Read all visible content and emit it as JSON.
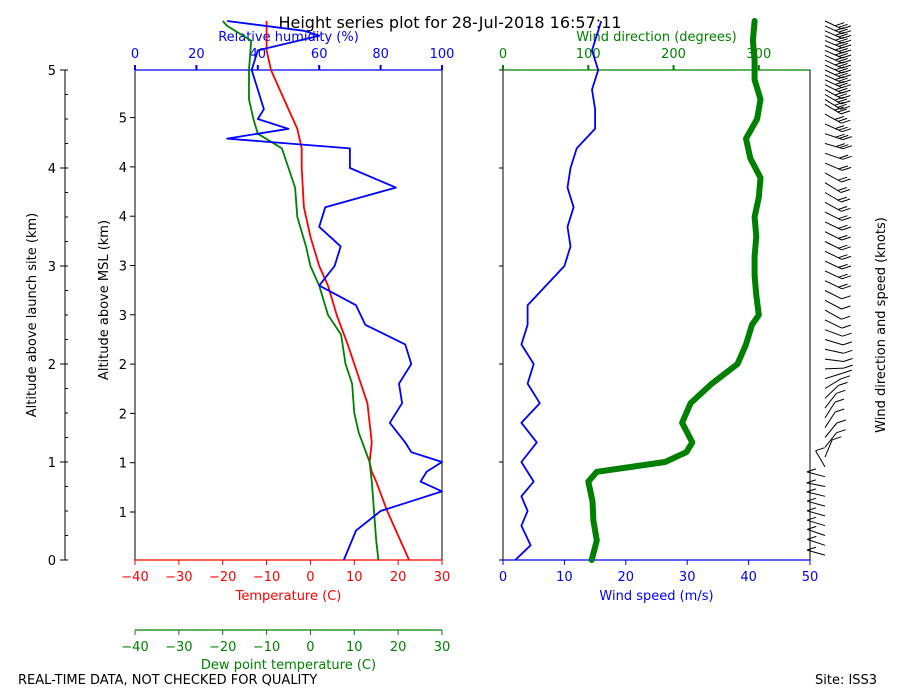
{
  "title": "Height series plot for 28-Jul-2018 16:57:11",
  "footer": {
    "left": "REAL-TIME DATA, NOT CHECKED FOR QUALITY",
    "right": "Site: ISS3"
  },
  "colors": {
    "temp": "#ff0000",
    "dewpoint": "#008000",
    "rh": "#0000ff",
    "wspd": "#0000ff",
    "wdir": "#008000",
    "axis": "#000000"
  },
  "chart_data": [
    {
      "type": "line",
      "name": "thermo",
      "title": "Height series plot for 28-Jul-2018 16:57:11",
      "y_left": {
        "label": "Altitude above launch site (km)",
        "range": [
          0,
          5
        ],
        "ticks": [
          0,
          1,
          2,
          3,
          4,
          5
        ]
      },
      "y_inner": {
        "label": "Altitude above MSL (km)",
        "labeled_ticks": [
          1,
          1,
          2,
          2,
          3,
          3,
          4,
          4,
          5
        ]
      },
      "x_bottom": {
        "label": "Temperature (C)",
        "range": [
          -40,
          30
        ],
        "ticks": [
          -40,
          -30,
          -20,
          -10,
          0,
          10,
          20,
          30
        ]
      },
      "x_bottom2": {
        "label": "Dew point temperature (C)",
        "range": [
          -40,
          30
        ],
        "ticks": [
          -40,
          -30,
          -20,
          -10,
          0,
          10,
          20,
          30
        ]
      },
      "x_top": {
        "label": "Relative humidity (%)",
        "range": [
          0,
          100
        ],
        "ticks": [
          0,
          20,
          40,
          60,
          80,
          100
        ]
      },
      "series": [
        {
          "name": "Temperature",
          "axis": "temp",
          "color": "#ff0000",
          "y": [
            0.0,
            0.2,
            0.5,
            0.8,
            0.9,
            1.0,
            1.2,
            1.4,
            1.6,
            2.0,
            2.2,
            2.5,
            2.8,
            3.0,
            3.3,
            3.6,
            4.0,
            4.2,
            4.4,
            4.6,
            4.8,
            5.0,
            5.2,
            5.5
          ],
          "values": [
            22.5,
            20.5,
            17.5,
            15,
            14,
            13.5,
            14,
            13.5,
            13,
            10,
            8.5,
            6,
            4,
            2,
            0,
            -1.5,
            -2,
            -2,
            -3,
            -5,
            -7,
            -9,
            -10,
            -10
          ]
        },
        {
          "name": "Dew point",
          "axis": "temp",
          "color": "#008000",
          "y": [
            0.0,
            0.2,
            0.5,
            0.8,
            1.0,
            1.3,
            1.5,
            1.8,
            2.0,
            2.3,
            2.5,
            2.8,
            3.0,
            3.2,
            3.5,
            3.8,
            4.0,
            4.2,
            4.35,
            4.5,
            4.7,
            5.0,
            5.3,
            5.45,
            5.5
          ],
          "values": [
            15.5,
            15,
            14.5,
            14,
            13.5,
            11,
            10,
            9.5,
            8,
            7,
            4,
            2,
            0,
            -1,
            -3,
            -3.5,
            -5,
            -6.5,
            -12,
            -13,
            -14,
            -14,
            -13.5,
            -19,
            -20
          ]
        },
        {
          "name": "Relative humidity",
          "axis": "rh",
          "color": "#0000ff",
          "y": [
            0.0,
            0.3,
            0.5,
            0.6,
            0.7,
            0.8,
            0.9,
            1.0,
            1.1,
            1.2,
            1.4,
            1.6,
            1.8,
            2.0,
            2.2,
            2.4,
            2.6,
            2.8,
            3.0,
            3.2,
            3.4,
            3.6,
            3.8,
            4.0,
            4.2,
            4.3,
            4.4,
            4.5,
            4.6,
            4.8,
            5.0,
            5.2,
            5.35,
            5.4,
            5.5
          ],
          "values": [
            68,
            72,
            80,
            90,
            100,
            93,
            95,
            100,
            90,
            88,
            83,
            87,
            86,
            90,
            88,
            75,
            72,
            60,
            65,
            67,
            60,
            62,
            85,
            70,
            70,
            30,
            50,
            40,
            42,
            40,
            38,
            40,
            60,
            55,
            30
          ]
        }
      ]
    },
    {
      "type": "line",
      "name": "wind",
      "x_bottom": {
        "label": "Wind speed (m/s)",
        "range": [
          0,
          50
        ],
        "ticks": [
          0,
          10,
          20,
          30,
          40,
          50
        ]
      },
      "x_top": {
        "label": "Wind direction (degrees)",
        "range": [
          0,
          360
        ],
        "ticks": [
          0,
          100,
          200,
          300
        ]
      },
      "y_right": {
        "label": "Wind direction and speed (knots)"
      },
      "series": [
        {
          "name": "Wind speed",
          "axis": "wspd",
          "color": "#0000ff",
          "y": [
            0.0,
            0.15,
            0.35,
            0.5,
            0.65,
            0.8,
            1.0,
            1.2,
            1.4,
            1.6,
            1.8,
            2.0,
            2.2,
            2.4,
            2.6,
            2.8,
            3.0,
            3.2,
            3.4,
            3.6,
            3.8,
            4.0,
            4.2,
            4.4,
            4.6,
            4.8,
            5.0,
            5.2,
            5.4,
            5.5
          ],
          "values": [
            2,
            4.5,
            3,
            4,
            3,
            5,
            3,
            5.5,
            3,
            6,
            4,
            5,
            3,
            4,
            4,
            7,
            10,
            11,
            10.5,
            11.5,
            10.5,
            11,
            12,
            15,
            15,
            14.5,
            15.5,
            14.5,
            15.5,
            16
          ]
        },
        {
          "name": "Wind direction",
          "axis": "wdir",
          "color": "#008000",
          "y": [
            0.0,
            0.2,
            0.4,
            0.6,
            0.8,
            0.9,
            1.0,
            1.1,
            1.2,
            1.4,
            1.6,
            1.8,
            2.0,
            2.2,
            2.4,
            2.5,
            2.7,
            2.9,
            3.1,
            3.3,
            3.5,
            3.7,
            3.9,
            4.1,
            4.3,
            4.5,
            4.7,
            4.9,
            5.1,
            5.3,
            5.5
          ],
          "values": [
            104,
            110,
            106,
            105,
            100,
            110,
            190,
            215,
            222,
            210,
            220,
            245,
            275,
            285,
            292,
            300,
            297,
            295,
            295,
            297,
            295,
            300,
            302,
            290,
            285,
            298,
            302,
            295,
            295,
            293,
            295
          ]
        }
      ]
    }
  ]
}
